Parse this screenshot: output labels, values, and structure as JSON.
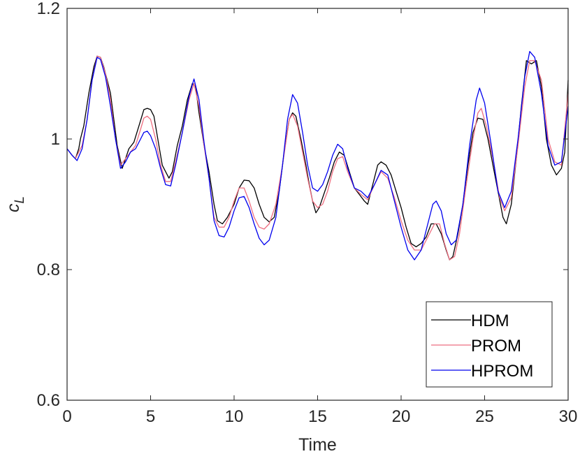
{
  "chart_data": {
    "type": "line",
    "xlabel": "Time",
    "ylabel": "c",
    "ylabel_subscript": "L",
    "xlim": [
      0,
      30
    ],
    "ylim": [
      0.6,
      1.2
    ],
    "xticks": [
      "0",
      "5",
      "10",
      "15",
      "20",
      "25",
      "30"
    ],
    "xtick_values": [
      0,
      5,
      10,
      15,
      20,
      25,
      30
    ],
    "yticks": [
      "0.6",
      "0.8",
      "1",
      "1.2"
    ],
    "ytick_values": [
      0.6,
      0.8,
      1.0,
      1.2
    ],
    "grid": false,
    "legend_position": "bottom-right",
    "series": [
      {
        "name": "HDM",
        "color": "#000000",
        "points": [
          [
            0,
            0.985
          ],
          [
            0.3,
            0.975
          ],
          [
            0.5,
            0.97
          ],
          [
            0.7,
            0.985
          ],
          [
            0.8,
            1.0
          ],
          [
            1.0,
            1.02
          ],
          [
            1.3,
            1.07
          ],
          [
            1.6,
            1.11
          ],
          [
            1.8,
            1.127
          ],
          [
            2.0,
            1.125
          ],
          [
            2.2,
            1.11
          ],
          [
            2.4,
            1.09
          ],
          [
            2.6,
            1.07
          ],
          [
            2.8,
            1.03
          ],
          [
            3.0,
            0.99
          ],
          [
            3.3,
            0.955
          ],
          [
            3.5,
            0.97
          ],
          [
            3.7,
            0.985
          ],
          [
            4.0,
            0.995
          ],
          [
            4.3,
            1.02
          ],
          [
            4.6,
            1.045
          ],
          [
            4.8,
            1.047
          ],
          [
            5.0,
            1.045
          ],
          [
            5.2,
            1.035
          ],
          [
            5.5,
            0.99
          ],
          [
            5.7,
            0.96
          ],
          [
            5.9,
            0.95
          ],
          [
            6.1,
            0.94
          ],
          [
            6.3,
            0.95
          ],
          [
            6.6,
            0.99
          ],
          [
            6.9,
            1.02
          ],
          [
            7.2,
            1.06
          ],
          [
            7.5,
            1.085
          ],
          [
            7.7,
            1.08
          ],
          [
            7.9,
            1.04
          ],
          [
            8.2,
            0.99
          ],
          [
            8.5,
            0.95
          ],
          [
            8.8,
            0.9
          ],
          [
            9.0,
            0.875
          ],
          [
            9.3,
            0.87
          ],
          [
            9.6,
            0.88
          ],
          [
            10.0,
            0.9
          ],
          [
            10.3,
            0.925
          ],
          [
            10.6,
            0.937
          ],
          [
            10.9,
            0.936
          ],
          [
            11.2,
            0.925
          ],
          [
            11.5,
            0.9
          ],
          [
            11.8,
            0.88
          ],
          [
            12.1,
            0.873
          ],
          [
            12.4,
            0.88
          ],
          [
            12.7,
            0.92
          ],
          [
            13.0,
            0.98
          ],
          [
            13.3,
            1.03
          ],
          [
            13.5,
            1.04
          ],
          [
            13.7,
            1.035
          ],
          [
            14.0,
            1.0
          ],
          [
            14.3,
            0.96
          ],
          [
            14.5,
            0.93
          ],
          [
            14.7,
            0.905
          ],
          [
            14.9,
            0.887
          ],
          [
            15.1,
            0.895
          ],
          [
            15.3,
            0.91
          ],
          [
            15.5,
            0.925
          ],
          [
            15.7,
            0.94
          ],
          [
            16.0,
            0.965
          ],
          [
            16.3,
            0.98
          ],
          [
            16.6,
            0.975
          ],
          [
            16.9,
            0.95
          ],
          [
            17.2,
            0.925
          ],
          [
            17.5,
            0.915
          ],
          [
            17.8,
            0.905
          ],
          [
            18.0,
            0.9
          ],
          [
            18.3,
            0.93
          ],
          [
            18.6,
            0.96
          ],
          [
            18.8,
            0.965
          ],
          [
            19.1,
            0.96
          ],
          [
            19.4,
            0.945
          ],
          [
            19.7,
            0.92
          ],
          [
            20.0,
            0.895
          ],
          [
            20.3,
            0.865
          ],
          [
            20.6,
            0.84
          ],
          [
            20.9,
            0.835
          ],
          [
            21.2,
            0.84
          ],
          [
            21.5,
            0.85
          ],
          [
            21.8,
            0.87
          ],
          [
            22.1,
            0.87
          ],
          [
            22.4,
            0.855
          ],
          [
            22.7,
            0.83
          ],
          [
            22.9,
            0.815
          ],
          [
            23.1,
            0.82
          ],
          [
            23.4,
            0.855
          ],
          [
            23.7,
            0.9
          ],
          [
            24.0,
            0.96
          ],
          [
            24.3,
            1.01
          ],
          [
            24.6,
            1.032
          ],
          [
            24.9,
            1.03
          ],
          [
            25.2,
            1.0
          ],
          [
            25.5,
            0.96
          ],
          [
            25.8,
            0.92
          ],
          [
            26.1,
            0.88
          ],
          [
            26.3,
            0.87
          ],
          [
            26.6,
            0.9
          ],
          [
            26.9,
            0.97
          ],
          [
            27.2,
            1.05
          ],
          [
            27.5,
            1.12
          ],
          [
            27.8,
            1.115
          ],
          [
            28.1,
            1.12
          ],
          [
            28.4,
            1.08
          ],
          [
            28.7,
            1.0
          ],
          [
            29.0,
            0.96
          ],
          [
            29.3,
            0.945
          ],
          [
            29.6,
            0.955
          ],
          [
            29.8,
            0.98
          ],
          [
            30.0,
            1.09
          ]
        ]
      },
      {
        "name": "PROM",
        "color": "#ee6e80",
        "points": [
          [
            0,
            0.985
          ],
          [
            0.3,
            0.975
          ],
          [
            0.5,
            0.97
          ],
          [
            0.7,
            0.98
          ],
          [
            0.9,
            0.99
          ],
          [
            1.2,
            1.03
          ],
          [
            1.5,
            1.09
          ],
          [
            1.8,
            1.127
          ],
          [
            2.0,
            1.125
          ],
          [
            2.3,
            1.1
          ],
          [
            2.6,
            1.06
          ],
          [
            2.9,
            1.0
          ],
          [
            3.2,
            0.96
          ],
          [
            3.5,
            0.97
          ],
          [
            3.8,
            0.98
          ],
          [
            4.1,
            0.99
          ],
          [
            4.4,
            1.015
          ],
          [
            4.6,
            1.032
          ],
          [
            4.8,
            1.035
          ],
          [
            5.0,
            1.03
          ],
          [
            5.3,
            1.0
          ],
          [
            5.6,
            0.96
          ],
          [
            5.9,
            0.935
          ],
          [
            6.2,
            0.935
          ],
          [
            6.5,
            0.965
          ],
          [
            6.9,
            1.01
          ],
          [
            7.3,
            1.06
          ],
          [
            7.6,
            1.085
          ],
          [
            7.9,
            1.05
          ],
          [
            8.2,
            0.99
          ],
          [
            8.5,
            0.94
          ],
          [
            8.8,
            0.88
          ],
          [
            9.1,
            0.865
          ],
          [
            9.4,
            0.865
          ],
          [
            9.7,
            0.88
          ],
          [
            10.0,
            0.905
          ],
          [
            10.3,
            0.925
          ],
          [
            10.6,
            0.925
          ],
          [
            10.9,
            0.905
          ],
          [
            11.2,
            0.88
          ],
          [
            11.5,
            0.865
          ],
          [
            11.8,
            0.862
          ],
          [
            12.1,
            0.87
          ],
          [
            12.5,
            0.9
          ],
          [
            12.9,
            0.96
          ],
          [
            13.3,
            1.03
          ],
          [
            13.5,
            1.038
          ],
          [
            13.8,
            1.02
          ],
          [
            14.1,
            0.98
          ],
          [
            14.4,
            0.94
          ],
          [
            14.7,
            0.905
          ],
          [
            15.0,
            0.895
          ],
          [
            15.3,
            0.9
          ],
          [
            15.6,
            0.92
          ],
          [
            15.9,
            0.95
          ],
          [
            16.2,
            0.97
          ],
          [
            16.5,
            0.973
          ],
          [
            16.8,
            0.95
          ],
          [
            17.2,
            0.925
          ],
          [
            17.6,
            0.915
          ],
          [
            18.0,
            0.907
          ],
          [
            18.4,
            0.93
          ],
          [
            18.8,
            0.95
          ],
          [
            19.2,
            0.94
          ],
          [
            19.6,
            0.91
          ],
          [
            20.0,
            0.875
          ],
          [
            20.4,
            0.845
          ],
          [
            20.8,
            0.83
          ],
          [
            21.2,
            0.83
          ],
          [
            21.6,
            0.85
          ],
          [
            22.0,
            0.87
          ],
          [
            22.3,
            0.87
          ],
          [
            22.6,
            0.84
          ],
          [
            22.9,
            0.815
          ],
          [
            23.2,
            0.82
          ],
          [
            23.5,
            0.855
          ],
          [
            23.9,
            0.93
          ],
          [
            24.3,
            1.0
          ],
          [
            24.6,
            1.04
          ],
          [
            24.8,
            1.047
          ],
          [
            25.1,
            1.02
          ],
          [
            25.5,
            0.97
          ],
          [
            25.9,
            0.91
          ],
          [
            26.2,
            0.89
          ],
          [
            26.6,
            0.91
          ],
          [
            27.0,
            0.99
          ],
          [
            27.4,
            1.08
          ],
          [
            27.7,
            1.12
          ],
          [
            28.0,
            1.12
          ],
          [
            28.4,
            1.09
          ],
          [
            28.8,
            1.0
          ],
          [
            29.2,
            0.965
          ],
          [
            29.6,
            0.96
          ],
          [
            30.0,
            1.07
          ]
        ]
      },
      {
        "name": "HPROM",
        "color": "#0000ee",
        "points": [
          [
            0,
            0.985
          ],
          [
            0.3,
            0.975
          ],
          [
            0.6,
            0.967
          ],
          [
            0.9,
            0.985
          ],
          [
            1.2,
            1.03
          ],
          [
            1.5,
            1.09
          ],
          [
            1.8,
            1.125
          ],
          [
            2.0,
            1.122
          ],
          [
            2.3,
            1.095
          ],
          [
            2.6,
            1.05
          ],
          [
            2.9,
            1.0
          ],
          [
            3.2,
            0.955
          ],
          [
            3.5,
            0.965
          ],
          [
            3.8,
            0.98
          ],
          [
            4.1,
            0.985
          ],
          [
            4.4,
            1.0
          ],
          [
            4.6,
            1.01
          ],
          [
            4.8,
            1.012
          ],
          [
            5.0,
            1.005
          ],
          [
            5.3,
            0.985
          ],
          [
            5.6,
            0.955
          ],
          [
            5.9,
            0.93
          ],
          [
            6.2,
            0.928
          ],
          [
            6.5,
            0.96
          ],
          [
            6.9,
            1.01
          ],
          [
            7.3,
            1.065
          ],
          [
            7.6,
            1.092
          ],
          [
            7.9,
            1.06
          ],
          [
            8.2,
            0.995
          ],
          [
            8.5,
            0.94
          ],
          [
            8.8,
            0.875
          ],
          [
            9.1,
            0.852
          ],
          [
            9.4,
            0.85
          ],
          [
            9.7,
            0.865
          ],
          [
            10.0,
            0.89
          ],
          [
            10.3,
            0.91
          ],
          [
            10.6,
            0.912
          ],
          [
            10.9,
            0.895
          ],
          [
            11.2,
            0.87
          ],
          [
            11.5,
            0.848
          ],
          [
            11.8,
            0.838
          ],
          [
            12.1,
            0.845
          ],
          [
            12.5,
            0.88
          ],
          [
            12.9,
            0.96
          ],
          [
            13.2,
            1.03
          ],
          [
            13.5,
            1.068
          ],
          [
            13.8,
            1.055
          ],
          [
            14.1,
            1.01
          ],
          [
            14.4,
            0.96
          ],
          [
            14.7,
            0.925
          ],
          [
            15.0,
            0.92
          ],
          [
            15.3,
            0.93
          ],
          [
            15.6,
            0.95
          ],
          [
            15.9,
            0.975
          ],
          [
            16.2,
            0.992
          ],
          [
            16.5,
            0.985
          ],
          [
            16.8,
            0.955
          ],
          [
            17.2,
            0.925
          ],
          [
            17.6,
            0.92
          ],
          [
            18.0,
            0.91
          ],
          [
            18.4,
            0.93
          ],
          [
            18.8,
            0.952
          ],
          [
            19.2,
            0.945
          ],
          [
            19.6,
            0.905
          ],
          [
            20.0,
            0.865
          ],
          [
            20.4,
            0.83
          ],
          [
            20.8,
            0.815
          ],
          [
            21.2,
            0.83
          ],
          [
            21.6,
            0.87
          ],
          [
            21.9,
            0.9
          ],
          [
            22.1,
            0.905
          ],
          [
            22.4,
            0.89
          ],
          [
            22.7,
            0.855
          ],
          [
            23.0,
            0.838
          ],
          [
            23.3,
            0.845
          ],
          [
            23.7,
            0.9
          ],
          [
            24.1,
            0.99
          ],
          [
            24.5,
            1.06
          ],
          [
            24.7,
            1.078
          ],
          [
            25.0,
            1.055
          ],
          [
            25.4,
            0.99
          ],
          [
            25.8,
            0.92
          ],
          [
            26.2,
            0.895
          ],
          [
            26.6,
            0.92
          ],
          [
            27.0,
            1.0
          ],
          [
            27.4,
            1.095
          ],
          [
            27.7,
            1.134
          ],
          [
            28.0,
            1.125
          ],
          [
            28.4,
            1.07
          ],
          [
            28.8,
            0.99
          ],
          [
            29.2,
            0.96
          ],
          [
            29.6,
            0.965
          ],
          [
            30.0,
            1.05
          ]
        ]
      }
    ]
  }
}
